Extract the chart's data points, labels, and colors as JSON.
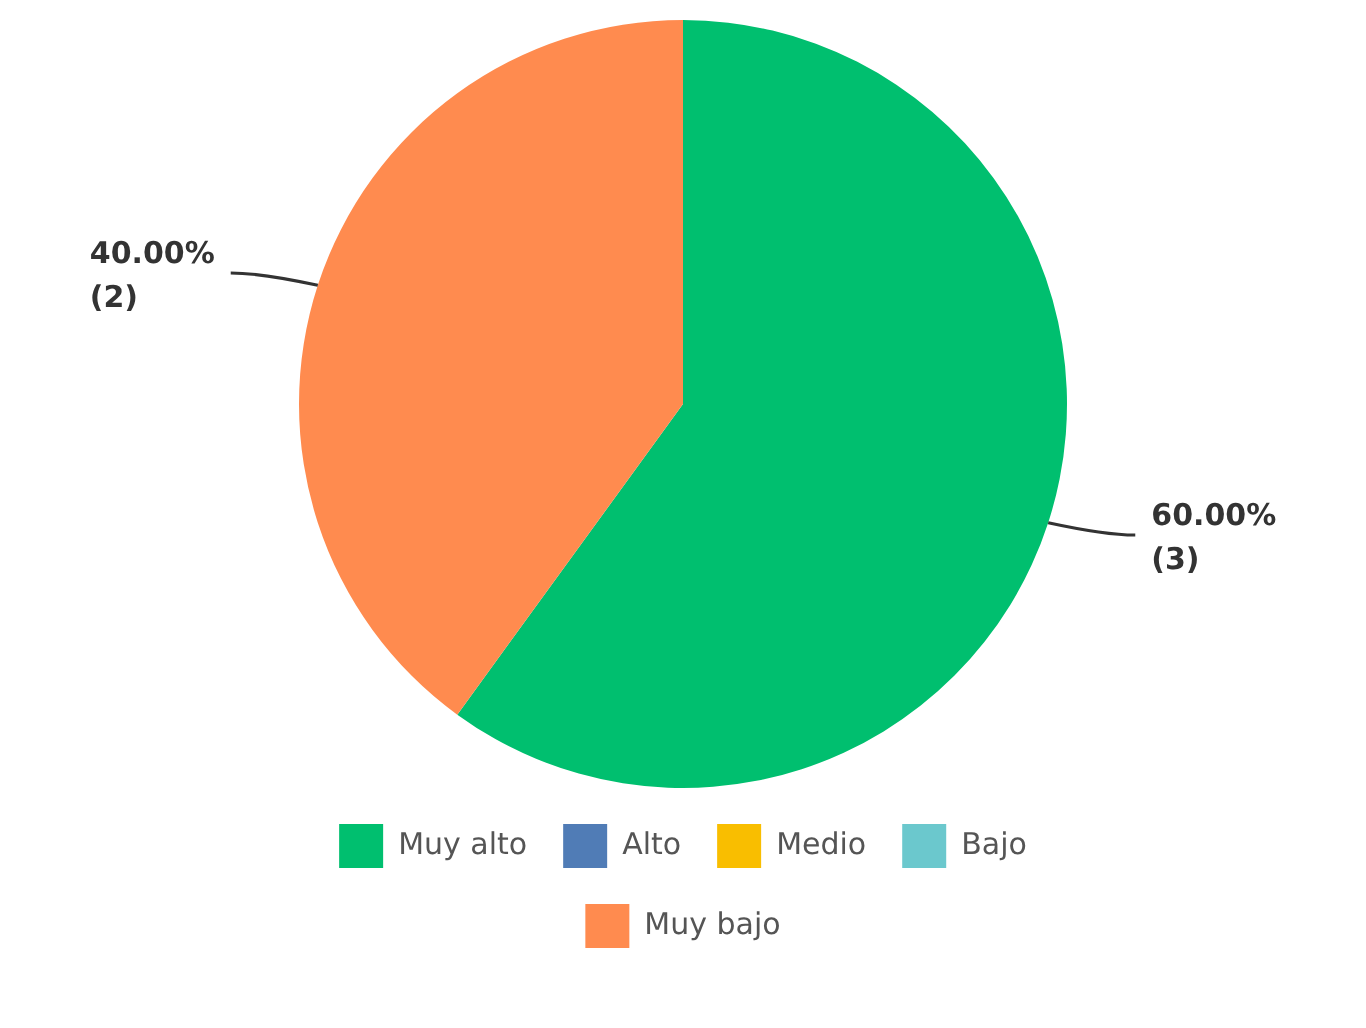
{
  "chart_data": {
    "type": "pie",
    "categories": [
      "Muy alto",
      "Alto",
      "Medio",
      "Bajo",
      "Muy bajo"
    ],
    "values": [
      3,
      0,
      0,
      0,
      2
    ],
    "colors": [
      "#00bf6f",
      "#507cb6",
      "#f9be00",
      "#6bc8cd",
      "#ff8b4f"
    ],
    "value_labels": [
      "60.00% (3)",
      null,
      null,
      null,
      "40.00% (2)"
    ],
    "legend": "bottom"
  }
}
